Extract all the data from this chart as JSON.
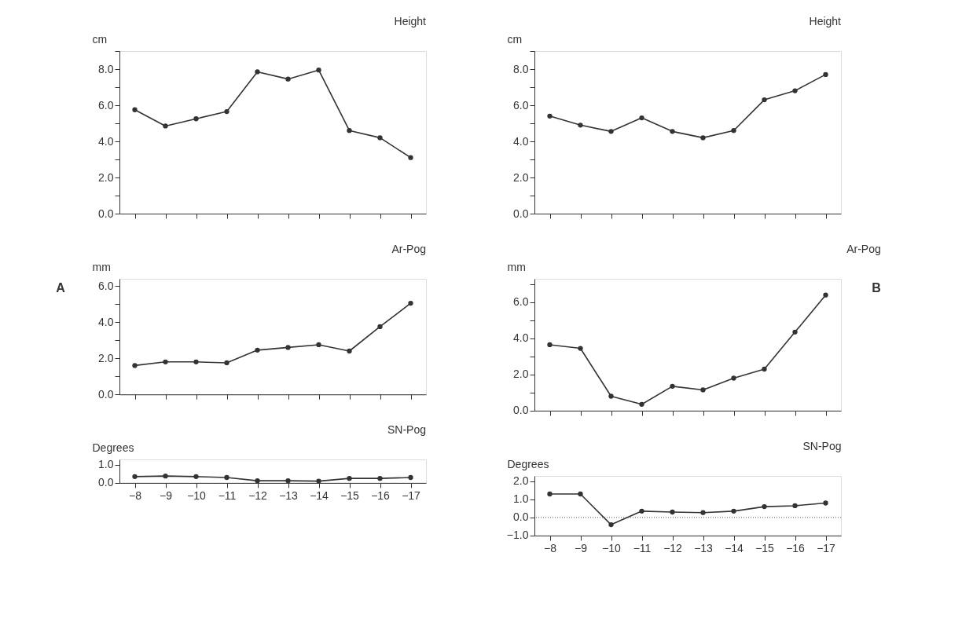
{
  "chart_data": [
    {
      "type": "line",
      "title": "Height",
      "ylabel": "cm",
      "categories": [
        "−8",
        "−9",
        "−10",
        "−11",
        "−12",
        "−13",
        "−14",
        "−15",
        "−16",
        "−17"
      ],
      "series": [
        {
          "color": "#333333",
          "values": [
            5.75,
            4.85,
            5.25,
            5.65,
            7.85,
            7.45,
            7.95,
            4.6,
            4.2,
            3.1
          ]
        }
      ],
      "ylim": [
        0,
        9
      ],
      "yticks": [
        {
          "value": 0,
          "label": "0.0"
        },
        {
          "value": 1,
          "label": null
        },
        {
          "value": 2,
          "label": "2.0"
        },
        {
          "value": 3,
          "label": null
        },
        {
          "value": 4,
          "label": "4.0"
        },
        {
          "value": 5,
          "label": null
        },
        {
          "value": 6,
          "label": "6.0"
        },
        {
          "value": 7,
          "label": null
        },
        {
          "value": 8,
          "label": "8.0"
        },
        {
          "value": 9,
          "label": null
        }
      ],
      "tick_labels": "y",
      "grid": false,
      "legend": false,
      "marker": "circle",
      "line_style": "solid"
    },
    {
      "type": "line",
      "title": "Height",
      "ylabel": "cm",
      "categories": [
        "−8",
        "−9",
        "−10",
        "−11",
        "−12",
        "−13",
        "−14",
        "−15",
        "−16",
        "−17"
      ],
      "series": [
        {
          "color": "#333333",
          "values": [
            5.4,
            4.9,
            4.55,
            5.3,
            4.55,
            4.2,
            4.6,
            6.3,
            6.8,
            7.7
          ]
        }
      ],
      "ylim": [
        0,
        9
      ],
      "yticks": [
        {
          "value": 0,
          "label": "0.0"
        },
        {
          "value": 1,
          "label": null
        },
        {
          "value": 2,
          "label": "2.0"
        },
        {
          "value": 3,
          "label": null
        },
        {
          "value": 4,
          "label": "4.0"
        },
        {
          "value": 5,
          "label": null
        },
        {
          "value": 6,
          "label": "6.0"
        },
        {
          "value": 7,
          "label": null
        },
        {
          "value": 8,
          "label": "8.0"
        },
        {
          "value": 9,
          "label": null
        }
      ],
      "tick_labels": "y",
      "grid": false,
      "legend": false,
      "marker": "circle",
      "line_style": "solid"
    },
    {
      "type": "line",
      "title": "Ar-Pog",
      "ylabel": "mm",
      "annotations": [
        "A"
      ],
      "categories": [
        "−8",
        "−9",
        "−10",
        "−11",
        "−12",
        "−13",
        "−14",
        "−15",
        "−16",
        "−17"
      ],
      "series": [
        {
          "color": "#333333",
          "values": [
            1.6,
            1.8,
            1.8,
            1.75,
            2.45,
            2.6,
            2.75,
            2.4,
            3.75,
            5.05
          ]
        }
      ],
      "ylim": [
        0,
        6.4
      ],
      "yticks": [
        {
          "value": 0,
          "label": "0.0"
        },
        {
          "value": 1,
          "label": null
        },
        {
          "value": 2,
          "label": "2.0"
        },
        {
          "value": 3,
          "label": null
        },
        {
          "value": 4,
          "label": "4.0"
        },
        {
          "value": 5,
          "label": null
        },
        {
          "value": 6,
          "label": "6.0"
        }
      ],
      "tick_labels": "y",
      "grid": false,
      "legend": false,
      "marker": "circle",
      "line_style": "solid"
    },
    {
      "type": "line",
      "title": "Ar-Pog",
      "ylabel": "mm",
      "annotations": [
        "B"
      ],
      "categories": [
        "−8",
        "−9",
        "−10",
        "−11",
        "−12",
        "−13",
        "−14",
        "−15",
        "−16",
        "−17"
      ],
      "series": [
        {
          "color": "#333333",
          "values": [
            3.65,
            3.45,
            0.8,
            0.35,
            1.35,
            1.15,
            1.8,
            2.3,
            4.35,
            6.4
          ]
        }
      ],
      "ylim": [
        0,
        7.3
      ],
      "yticks": [
        {
          "value": 0,
          "label": "0.0"
        },
        {
          "value": 1,
          "label": null
        },
        {
          "value": 2,
          "label": "2.0"
        },
        {
          "value": 3,
          "label": null
        },
        {
          "value": 4,
          "label": "4.0"
        },
        {
          "value": 5,
          "label": null
        },
        {
          "value": 6,
          "label": "6.0"
        },
        {
          "value": 7,
          "label": null
        }
      ],
      "tick_labels": "y",
      "grid": false,
      "legend": false,
      "marker": "circle",
      "line_style": "solid"
    },
    {
      "type": "line",
      "title": "SN-Pog",
      "ylabel": "Degrees",
      "categories": [
        "−8",
        "−9",
        "−10",
        "−11",
        "−12",
        "−13",
        "−14",
        "−15",
        "−16",
        "−17"
      ],
      "series": [
        {
          "color": "#333333",
          "values": [
            0.35,
            0.38,
            0.35,
            0.3,
            0.12,
            0.12,
            0.1,
            0.25,
            0.25,
            0.3
          ]
        }
      ],
      "ylim": [
        0,
        1.3
      ],
      "yticks": [
        {
          "value": 0,
          "label": "0.0"
        },
        {
          "value": 1,
          "label": "1.0"
        }
      ],
      "grid": false,
      "legend": false,
      "marker": "circle",
      "line_style": "solid"
    },
    {
      "type": "line",
      "title": "SN-Pog",
      "ylabel": "Degrees",
      "categories": [
        "−8",
        "−9",
        "−10",
        "−11",
        "−12",
        "−13",
        "−14",
        "−15",
        "−16",
        "−17"
      ],
      "series": [
        {
          "color": "#333333",
          "values": [
            1.3,
            1.3,
            -0.4,
            0.35,
            0.3,
            0.27,
            0.35,
            0.6,
            0.65,
            0.8
          ]
        }
      ],
      "ylim": [
        -1,
        2.3
      ],
      "yticks": [
        {
          "value": -1,
          "label": "−1.0"
        },
        {
          "value": 0,
          "label": "0.0"
        },
        {
          "value": 1,
          "label": "1.0"
        },
        {
          "value": 2,
          "label": "2.0"
        }
      ],
      "ref_lines": [
        {
          "axis": "y",
          "value": 0,
          "line_style": "dotted",
          "color": "#555555"
        }
      ],
      "grid": false,
      "legend": false,
      "marker": "circle",
      "line_style": "solid"
    }
  ]
}
